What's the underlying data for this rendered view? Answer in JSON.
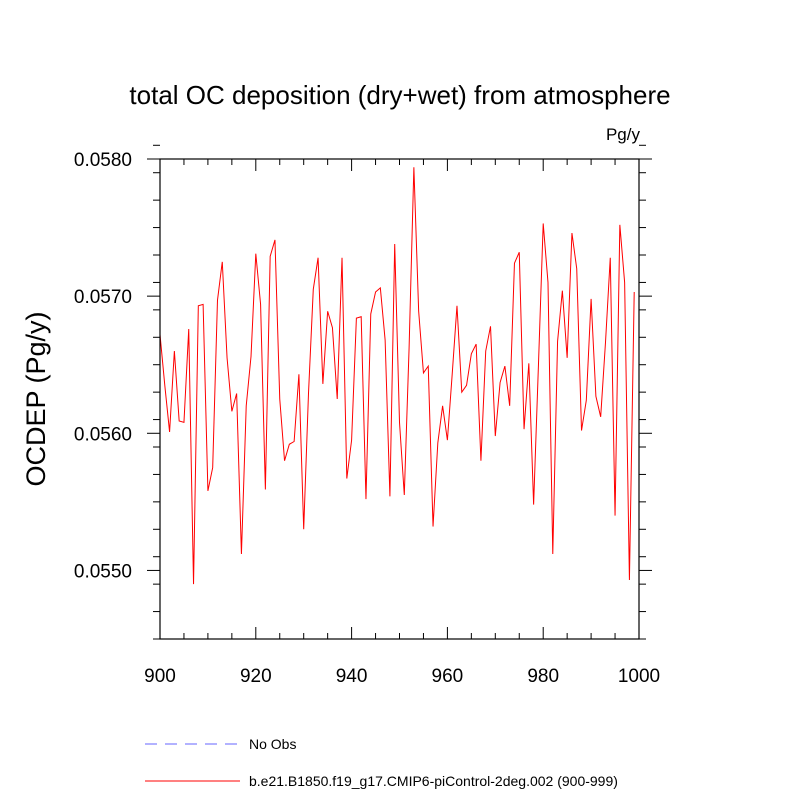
{
  "chart_data": {
    "type": "line",
    "title": "total OC deposition (dry+wet) from atmosphere",
    "units": "Pg/y",
    "xlabel": "",
    "ylabel": "OCDEP  (Pg/y)",
    "xlim": [
      900,
      1000
    ],
    "ylim": [
      0.0545,
      0.058
    ],
    "xticks": [
      900,
      920,
      940,
      960,
      980,
      1000
    ],
    "xtick_labels": [
      "900",
      "920",
      "940",
      "960",
      "980",
      "1000"
    ],
    "yticks": [
      0.055,
      0.056,
      0.057,
      0.058
    ],
    "ytick_labels": [
      "0.0550",
      "0.0560",
      "0.0570",
      "0.0580"
    ],
    "x_minor_step": 5,
    "y_minor_step": 0.0002,
    "legend": [
      {
        "name": "No Obs",
        "color": "#6666ff",
        "style": "dashed"
      },
      {
        "name": "b.e21.B1850.f19_g17.CMIP6-piControl-2deg.002 (900-999)",
        "color": "#ff0000",
        "style": "solid"
      }
    ],
    "series": [
      {
        "name": "b.e21.B1850.f19_g17.CMIP6-piControl-2deg.002 (900-999)",
        "color": "#ff0000",
        "x_start": 900,
        "x_step": 1,
        "values": [
          0.05672,
          0.05635,
          0.05601,
          0.0566,
          0.05609,
          0.05608,
          0.05676,
          0.0549,
          0.05693,
          0.05694,
          0.05558,
          0.05575,
          0.05697,
          0.05725,
          0.05655,
          0.05616,
          0.05629,
          0.05512,
          0.0562,
          0.05656,
          0.05731,
          0.05694,
          0.05559,
          0.05729,
          0.05741,
          0.05625,
          0.0558,
          0.05592,
          0.05594,
          0.05643,
          0.0553,
          0.05629,
          0.05705,
          0.05728,
          0.05636,
          0.05689,
          0.05677,
          0.05625,
          0.05728,
          0.05567,
          0.05595,
          0.05684,
          0.05685,
          0.05552,
          0.05687,
          0.05703,
          0.05706,
          0.05668,
          0.05554,
          0.05738,
          0.05608,
          0.05555,
          0.05662,
          0.05794,
          0.05689,
          0.05644,
          0.05649,
          0.05532,
          0.05593,
          0.0562,
          0.05595,
          0.05643,
          0.05693,
          0.0563,
          0.05635,
          0.05658,
          0.05665,
          0.0558,
          0.0566,
          0.05678,
          0.05598,
          0.05637,
          0.05649,
          0.0562,
          0.05724,
          0.05732,
          0.05603,
          0.05651,
          0.05548,
          0.05649,
          0.05753,
          0.0571,
          0.05512,
          0.05667,
          0.05704,
          0.05655,
          0.05746,
          0.0572,
          0.05602,
          0.05624,
          0.05698,
          0.05627,
          0.05612,
          0.05666,
          0.05728,
          0.0554,
          0.05752,
          0.0571,
          0.05493,
          0.05703
        ]
      }
    ]
  }
}
